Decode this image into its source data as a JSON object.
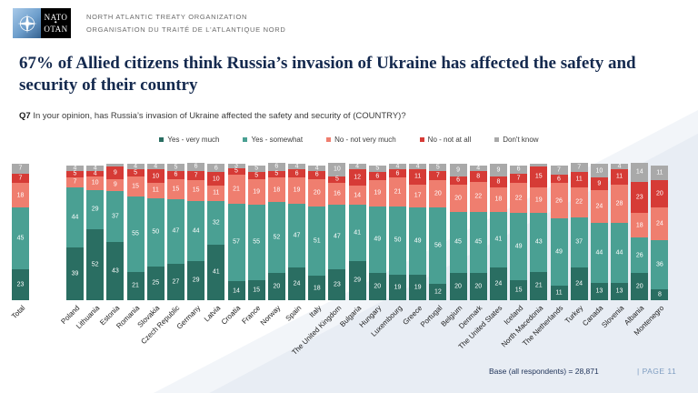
{
  "header": {
    "logo": {
      "nato_label": "NATO",
      "otan_label": "OTAN",
      "star_separator": "✦"
    },
    "org_line1": "NORTH ATLANTIC TREATY ORGANIZATION",
    "org_line2": "ORGANISATION DU TRAITÉ DE L'ATLANTIQUE NORD"
  },
  "title": "67% of Allied citizens think Russia’s invasion of Ukraine has affected the safety and security of their country",
  "question": {
    "label": "Q7",
    "text": "In your opinion, has Russia’s invasion of Ukraine affected the safety and security of (COUNTRY)?"
  },
  "footer": {
    "base_text": "Base (all respondents) = 28,871",
    "page_text": "|  PAGE 11"
  },
  "colors": {
    "yes_very_much": "#2a6e62",
    "yes_somewhat": "#4aa093",
    "no_not_very_much": "#ef7e6f",
    "no_not_at_all": "#d63b36",
    "dont_know": "#a9a9a9",
    "title_navy": "#14294e",
    "page_number_blue": "#7d9cc0",
    "background_wedge": "#e8edf4"
  },
  "chart_data": {
    "type": "bar",
    "stacked": true,
    "ylim": [
      0,
      100
    ],
    "legend_position": "top",
    "value_labels": true,
    "categories": [
      "Total",
      "Poland",
      "Lithuania",
      "Estonia",
      "Romania",
      "Slovakia",
      "Czech Republic",
      "Germany",
      "Latvia",
      "Croatia",
      "France",
      "Norway",
      "Spain",
      "Italy",
      "The United Kingdom",
      "Bulgaria",
      "Hungary",
      "Luxembourg",
      "Greece",
      "Portugal",
      "Belgium",
      "Denmark",
      "The United States",
      "Iceland",
      "North Macedonia",
      "The Netherlands",
      "Turkey",
      "Canada",
      "Slovenia",
      "Albania",
      "Montenegro"
    ],
    "series": [
      {
        "name": "Yes - very much",
        "color": "#2a6e62",
        "values": [
          23,
          39,
          52,
          43,
          21,
          25,
          27,
          29,
          41,
          14,
          15,
          20,
          24,
          18,
          23,
          29,
          20,
          19,
          19,
          12,
          20,
          20,
          24,
          15,
          21,
          11,
          24,
          13,
          13,
          20,
          8
        ]
      },
      {
        "name": "Yes - somewhat",
        "color": "#4aa093",
        "values": [
          45,
          44,
          29,
          37,
          55,
          50,
          47,
          44,
          32,
          57,
          55,
          52,
          47,
          51,
          47,
          41,
          49,
          50,
          49,
          56,
          45,
          45,
          41,
          49,
          43,
          49,
          37,
          44,
          44,
          26,
          36
        ]
      },
      {
        "name": "No - not very much",
        "color": "#ef7e6f",
        "values": [
          18,
          7,
          10,
          9,
          15,
          11,
          15,
          15,
          11,
          21,
          19,
          18,
          19,
          20,
          16,
          14,
          19,
          21,
          17,
          20,
          20,
          22,
          18,
          22,
          19,
          26,
          22,
          24,
          28,
          18,
          24
        ]
      },
      {
        "name": "No - not at all",
        "color": "#d63b36",
        "values": [
          7,
          5,
          4,
          9,
          5,
          10,
          6,
          7,
          10,
          5,
          5,
          5,
          6,
          6,
          5,
          12,
          6,
          6,
          11,
          7,
          6,
          8,
          8,
          7,
          15,
          6,
          11,
          9,
          11,
          23,
          20
        ]
      },
      {
        "name": "Don't know",
        "color": "#a9a9a9",
        "values": [
          7,
          4,
          4,
          2,
          4,
          4,
          5,
          6,
          6,
          3,
          5,
          6,
          4,
          4,
          10,
          4,
          5,
          4,
          4,
          5,
          9,
          4,
          9,
          6,
          2,
          7,
          7,
          10,
          4,
          14,
          11
        ]
      }
    ]
  }
}
